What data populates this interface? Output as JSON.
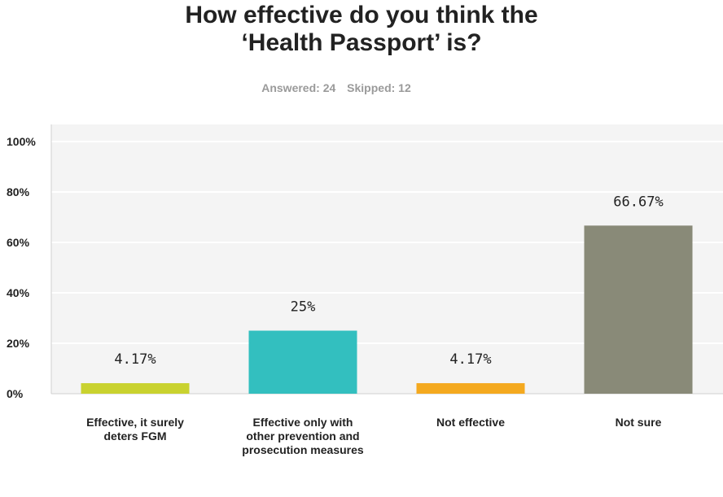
{
  "header": {
    "title_line1": "How effective do you think the",
    "title_line2": "‘Health Passport’ is?",
    "answered": "Answered: 24",
    "skipped": "Skipped: 12"
  },
  "chart_data": {
    "type": "bar",
    "title": "How effective do you think the ‘Health Passport’ is?",
    "categories": [
      "Effective, it surely deters FGM",
      "Effective only with other prevention and prosecution measures",
      "Not effective",
      "Not sure"
    ],
    "values": [
      4.17,
      25,
      4.17,
      66.67
    ],
    "data_labels": [
      "4.17%",
      "25%",
      "4.17%",
      "66.67%"
    ],
    "colors": [
      "#c9d22f",
      "#33bfbf",
      "#f4a91f",
      "#898a78"
    ],
    "ylim": [
      0,
      100
    ],
    "yticks": [
      0,
      20,
      40,
      60,
      80,
      100
    ],
    "ytick_labels": [
      "0%",
      "20%",
      "40%",
      "60%",
      "80%",
      "100%"
    ],
    "grid": true,
    "plot_background": "#f4f4f4",
    "xlabel": "",
    "ylabel": ""
  }
}
